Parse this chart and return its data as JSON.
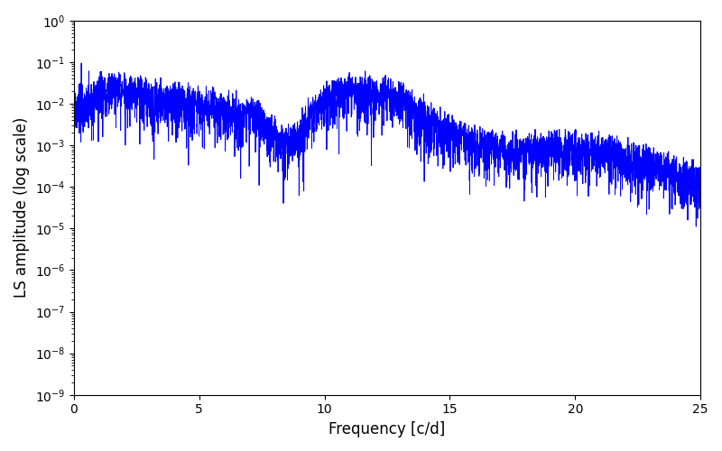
{
  "title": "",
  "xlabel": "Frequency [c/d]",
  "ylabel": "LS amplitude (log scale)",
  "line_color": "#0000ff",
  "line_width": 0.7,
  "xlim": [
    0,
    25
  ],
  "ylim": [
    1e-09,
    1.0
  ],
  "freq_min": 0.0,
  "freq_max": 25.0,
  "n_points": 8000,
  "background_color": "#ffffff",
  "figsize": [
    8.0,
    5.0
  ],
  "dpi": 100,
  "seed": 17
}
